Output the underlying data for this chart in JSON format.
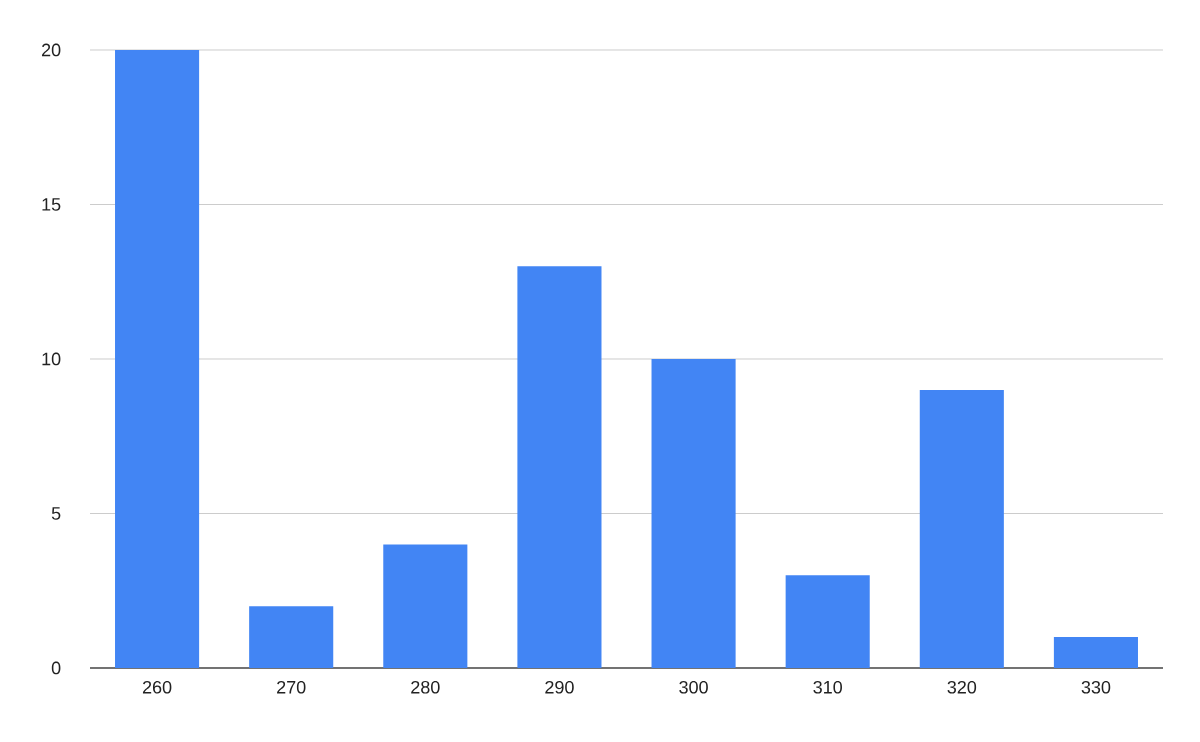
{
  "chart_data": {
    "type": "bar",
    "categories": [
      "260",
      "270",
      "280",
      "290",
      "300",
      "310",
      "320",
      "330"
    ],
    "values": [
      20,
      2,
      4,
      13,
      10,
      3,
      9,
      1
    ],
    "color": "#4285f4",
    "ylim": [
      0,
      20
    ],
    "yticks": [
      0,
      5,
      10,
      15,
      20
    ],
    "grid": "y"
  }
}
